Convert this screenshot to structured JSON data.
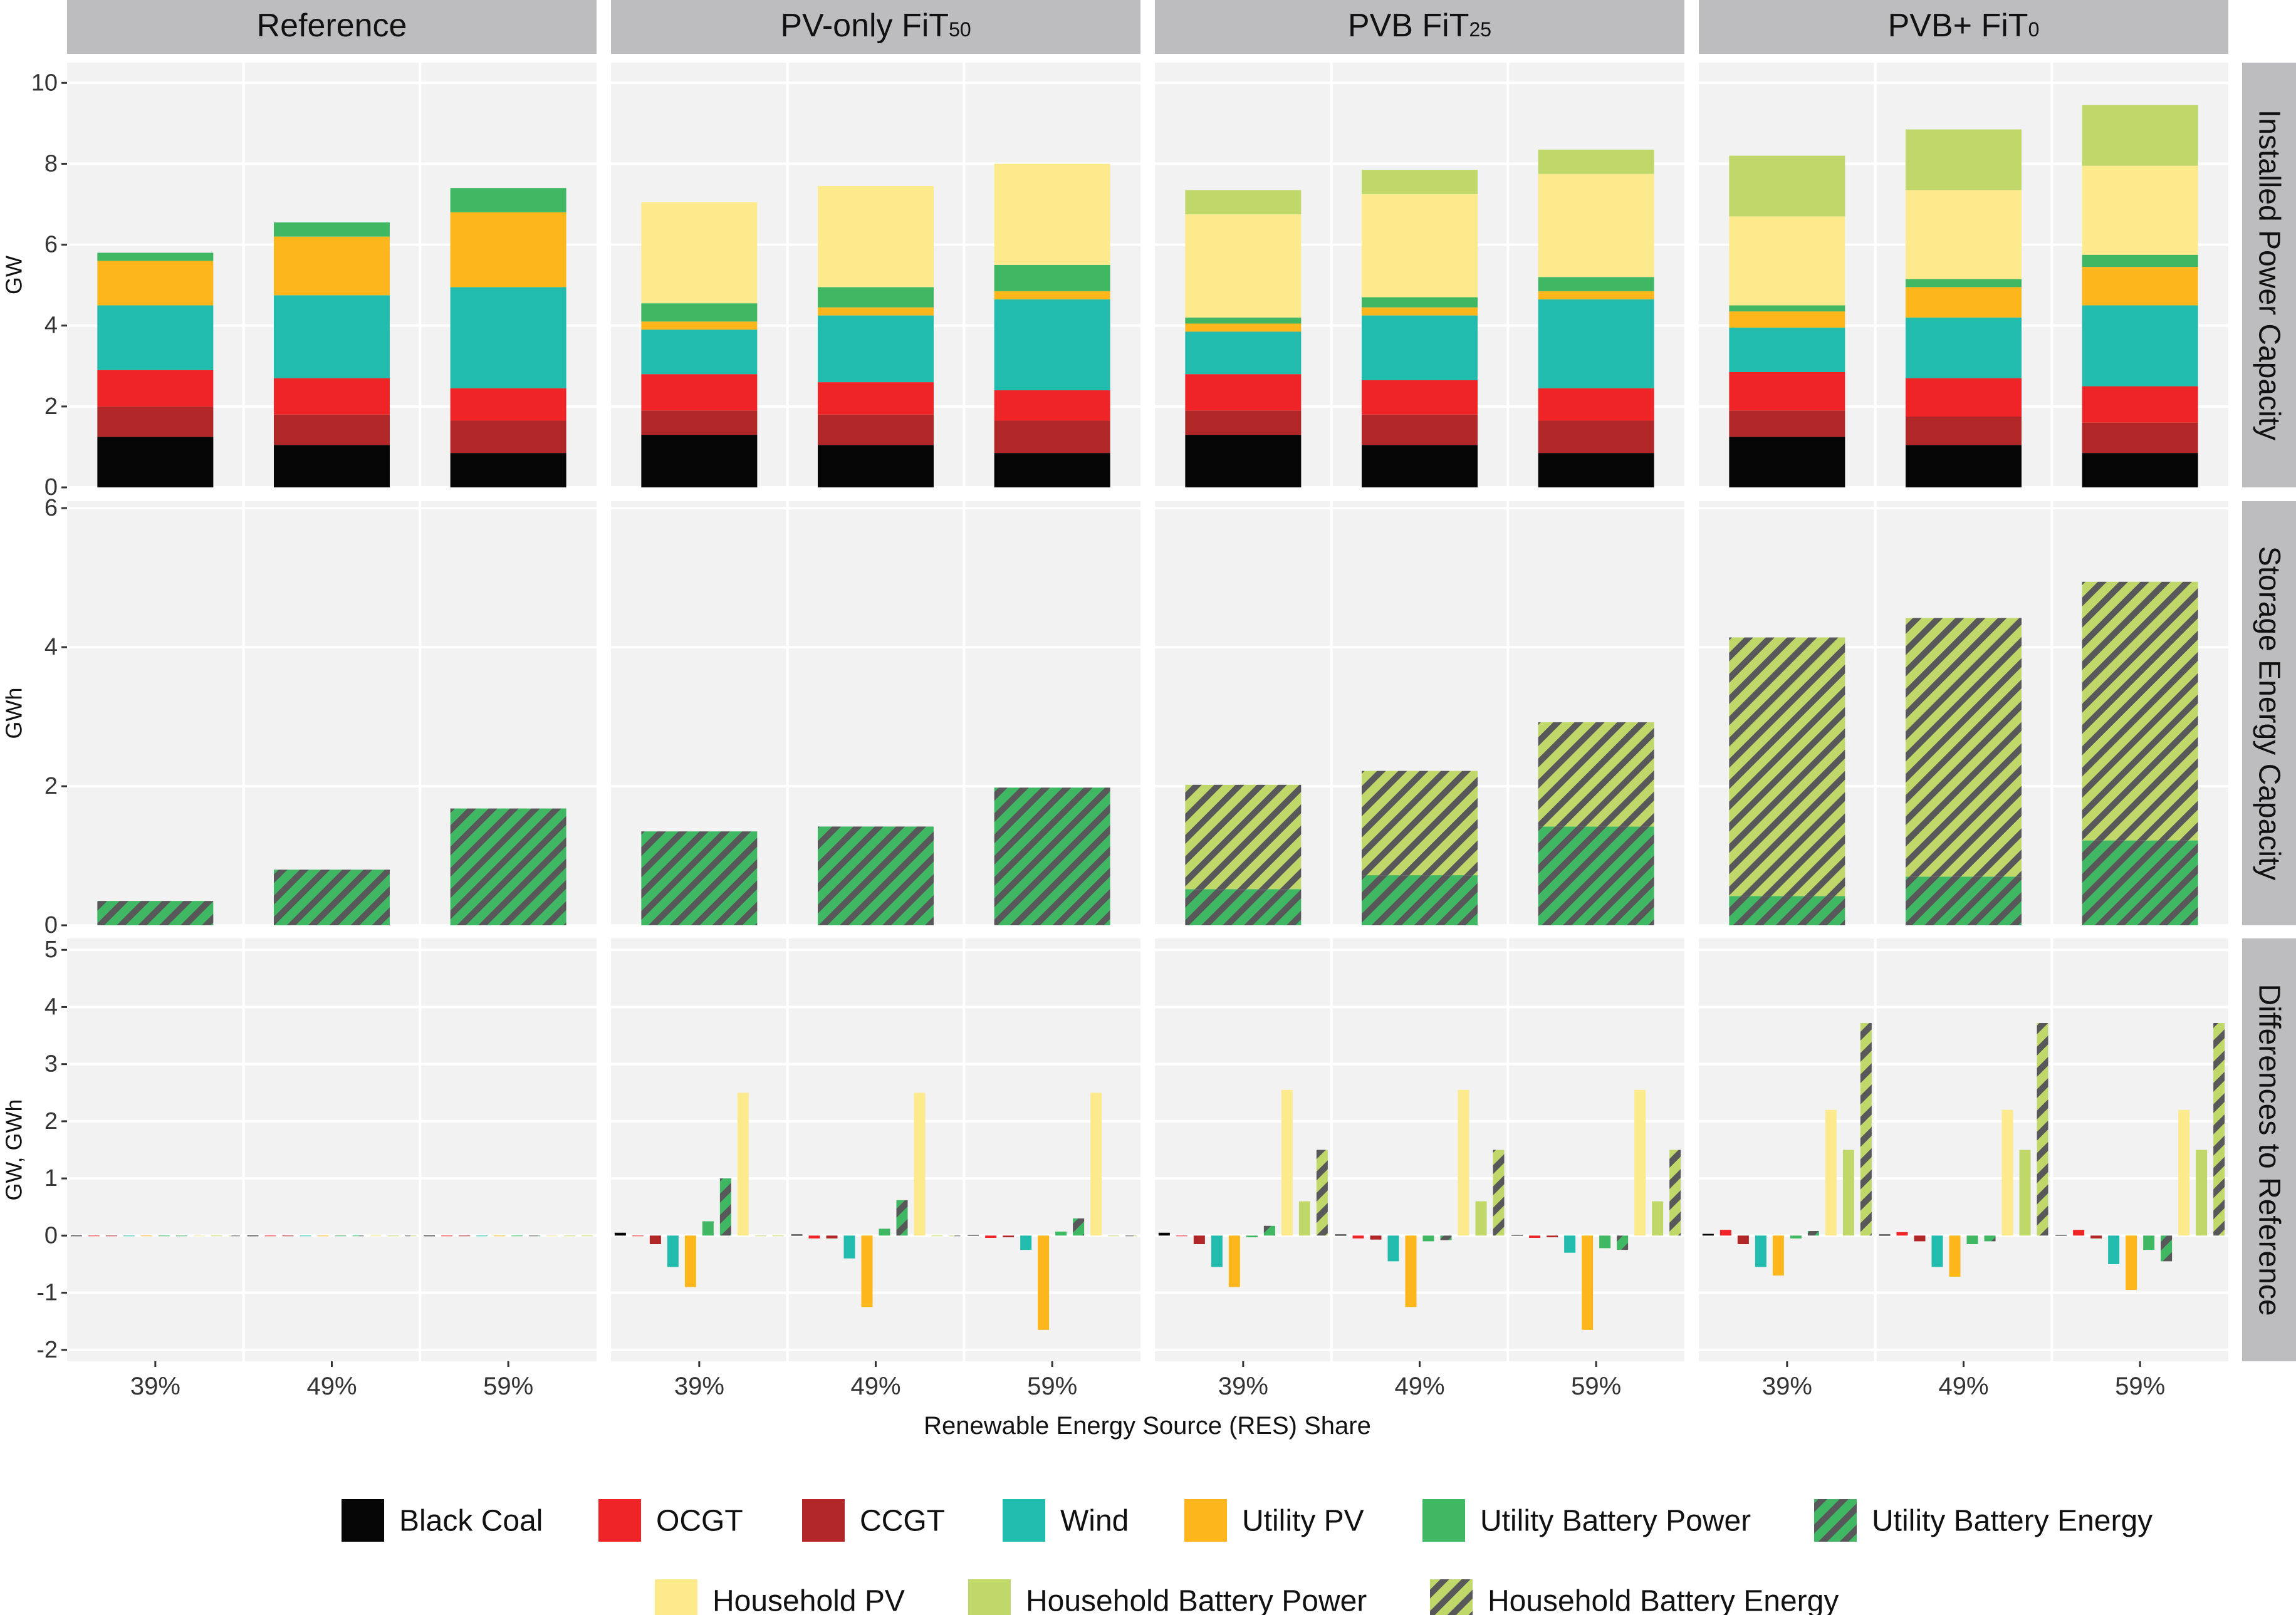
{
  "colors": {
    "Black Coal": "#050505",
    "OCGT": "#ee2427",
    "CCGT": "#b12626",
    "Wind": "#21bcad",
    "Utility PV": "#fdb71c",
    "Utility Battery Power": "#40b762",
    "Utility Battery Energy": "#40b762",
    "Household PV": "#fcea8d",
    "Household Battery Power": "#c0d86a",
    "Household Battery Energy": "#c0d86a",
    "stripe": "#58585a",
    "panel_bg": "#f2f2f2",
    "strip_bg": "#bdbdbf"
  },
  "chart_data": {
    "type": "bar",
    "xlabel": "Renewable Energy Source (RES) Share",
    "categories": [
      "39%",
      "49%",
      "59%"
    ],
    "facet_columns": [
      {
        "main": "Reference",
        "sub": ""
      },
      {
        "main": "PV-only FiT",
        "sub": "50"
      },
      {
        "main": "PVB FiT",
        "sub": "25"
      },
      {
        "main": "PVB+ FiT",
        "sub": "0"
      }
    ],
    "facet_rows": [
      {
        "label": "Installed Power Capacity",
        "ylabel": "GW",
        "ylim": [
          0,
          10.5
        ],
        "ticks": [
          "0",
          "2",
          "4",
          "6",
          "8",
          "10"
        ],
        "tick_values": [
          0,
          2,
          4,
          6,
          8,
          10
        ]
      },
      {
        "label": "Storage Energy Capacity",
        "ylabel": "GWh",
        "ylim": [
          0,
          6.1
        ],
        "ticks": [
          "0",
          "2",
          "4",
          "6"
        ],
        "tick_values": [
          0,
          2,
          4,
          6
        ]
      },
      {
        "label": "Differences to Reference",
        "ylabel": "GW, GWh",
        "ylim": [
          -2.2,
          5.2
        ],
        "ticks": [
          "-2",
          "-1",
          "0",
          "1",
          "2",
          "3",
          "4",
          "5"
        ],
        "tick_values": [
          -2,
          -1,
          0,
          1,
          2,
          3,
          4,
          5
        ]
      }
    ],
    "installed_power_capacity": [
      [
        {
          "Black Coal": 1.25,
          "CCGT": 0.75,
          "OCGT": 0.9,
          "Wind": 1.6,
          "Utility PV": 1.1,
          "Utility Battery Power": 0.2
        },
        {
          "Black Coal": 1.05,
          "CCGT": 0.75,
          "OCGT": 0.9,
          "Wind": 2.05,
          "Utility PV": 1.45,
          "Utility Battery Power": 0.35
        },
        {
          "Black Coal": 0.85,
          "CCGT": 0.8,
          "OCGT": 0.8,
          "Wind": 2.5,
          "Utility PV": 1.85,
          "Utility Battery Power": 0.6
        }
      ],
      [
        {
          "Black Coal": 1.3,
          "CCGT": 0.6,
          "OCGT": 0.9,
          "Wind": 1.1,
          "Utility PV": 0.2,
          "Utility Battery Power": 0.45,
          "Household PV": 2.5
        },
        {
          "Black Coal": 1.05,
          "CCGT": 0.75,
          "OCGT": 0.8,
          "Wind": 1.65,
          "Utility PV": 0.2,
          "Utility Battery Power": 0.5,
          "Household PV": 2.5
        },
        {
          "Black Coal": 0.85,
          "CCGT": 0.8,
          "OCGT": 0.75,
          "Wind": 2.25,
          "Utility PV": 0.2,
          "Utility Battery Power": 0.65,
          "Household PV": 2.5
        }
      ],
      [
        {
          "Black Coal": 1.3,
          "CCGT": 0.6,
          "OCGT": 0.9,
          "Wind": 1.05,
          "Utility PV": 0.2,
          "Utility Battery Power": 0.15,
          "Household PV": 2.55,
          "Household Battery Power": 0.6
        },
        {
          "Black Coal": 1.05,
          "CCGT": 0.75,
          "OCGT": 0.85,
          "Wind": 1.6,
          "Utility PV": 0.2,
          "Utility Battery Power": 0.25,
          "Household PV": 2.55,
          "Household Battery Power": 0.6
        },
        {
          "Black Coal": 0.85,
          "CCGT": 0.8,
          "OCGT": 0.8,
          "Wind": 2.2,
          "Utility PV": 0.2,
          "Utility Battery Power": 0.35,
          "Household PV": 2.55,
          "Household Battery Power": 0.6
        }
      ],
      [
        {
          "Black Coal": 1.25,
          "CCGT": 0.65,
          "OCGT": 0.95,
          "Wind": 1.1,
          "Utility PV": 0.4,
          "Utility Battery Power": 0.15,
          "Household PV": 2.2,
          "Household Battery Power": 1.5
        },
        {
          "Black Coal": 1.05,
          "CCGT": 0.7,
          "OCGT": 0.95,
          "Wind": 1.5,
          "Utility PV": 0.75,
          "Utility Battery Power": 0.2,
          "Household PV": 2.2,
          "Household Battery Power": 1.5
        },
        {
          "Black Coal": 0.85,
          "CCGT": 0.75,
          "OCGT": 0.9,
          "Wind": 2.0,
          "Utility PV": 0.95,
          "Utility Battery Power": 0.3,
          "Household PV": 2.2,
          "Household Battery Power": 1.5
        }
      ]
    ],
    "storage_energy_capacity": [
      [
        {
          "Utility Battery Energy": 0.35
        },
        {
          "Utility Battery Energy": 0.8
        },
        {
          "Utility Battery Energy": 1.68
        }
      ],
      [
        {
          "Utility Battery Energy": 1.35
        },
        {
          "Utility Battery Energy": 1.42
        },
        {
          "Utility Battery Energy": 1.98
        }
      ],
      [
        {
          "Utility Battery Energy": 0.52,
          "Household Battery Energy": 1.5
        },
        {
          "Utility Battery Energy": 0.72,
          "Household Battery Energy": 1.5
        },
        {
          "Utility Battery Energy": 1.42,
          "Household Battery Energy": 1.5
        }
      ],
      [
        {
          "Utility Battery Energy": 0.42,
          "Household Battery Energy": 3.72
        },
        {
          "Utility Battery Energy": 0.7,
          "Household Battery Energy": 3.72
        },
        {
          "Utility Battery Energy": 1.22,
          "Household Battery Energy": 3.72
        }
      ]
    ],
    "differences_to_reference": [
      [
        {
          "Black Coal": 0,
          "OCGT": 0,
          "CCGT": 0,
          "Wind": 0,
          "Utility PV": 0,
          "Utility Battery Power": 0,
          "Utility Battery Energy": 0,
          "Household PV": 0,
          "Household Battery Power": 0,
          "Household Battery Energy": 0
        },
        {
          "Black Coal": 0,
          "OCGT": 0,
          "CCGT": 0,
          "Wind": 0,
          "Utility PV": 0,
          "Utility Battery Power": 0,
          "Utility Battery Energy": 0,
          "Household PV": 0,
          "Household Battery Power": 0,
          "Household Battery Energy": 0
        },
        {
          "Black Coal": 0,
          "OCGT": 0,
          "CCGT": 0,
          "Wind": 0,
          "Utility PV": 0,
          "Utility Battery Power": 0,
          "Utility Battery Energy": 0,
          "Household PV": 0,
          "Household Battery Power": 0,
          "Household Battery Energy": 0
        }
      ],
      [
        {
          "Black Coal": 0.05,
          "OCGT": 0.0,
          "CCGT": -0.15,
          "Wind": -0.55,
          "Utility PV": -0.9,
          "Utility Battery Power": 0.25,
          "Utility Battery Energy": 1.0,
          "Household PV": 2.5,
          "Household Battery Power": 0,
          "Household Battery Energy": 0
        },
        {
          "Black Coal": 0.02,
          "OCGT": -0.05,
          "CCGT": -0.05,
          "Wind": -0.4,
          "Utility PV": -1.25,
          "Utility Battery Power": 0.12,
          "Utility Battery Energy": 0.62,
          "Household PV": 2.5,
          "Household Battery Power": 0,
          "Household Battery Energy": 0
        },
        {
          "Black Coal": 0.01,
          "OCGT": -0.04,
          "CCGT": -0.03,
          "Wind": -0.25,
          "Utility PV": -1.65,
          "Utility Battery Power": 0.07,
          "Utility Battery Energy": 0.3,
          "Household PV": 2.5,
          "Household Battery Power": 0,
          "Household Battery Energy": 0
        }
      ],
      [
        {
          "Black Coal": 0.05,
          "OCGT": 0.0,
          "CCGT": -0.15,
          "Wind": -0.55,
          "Utility PV": -0.9,
          "Utility Battery Power": -0.03,
          "Utility Battery Energy": 0.17,
          "Household PV": 2.55,
          "Household Battery Power": 0.6,
          "Household Battery Energy": 1.5
        },
        {
          "Black Coal": 0.02,
          "OCGT": -0.05,
          "CCGT": -0.07,
          "Wind": -0.45,
          "Utility PV": -1.25,
          "Utility Battery Power": -0.1,
          "Utility Battery Energy": -0.08,
          "Household PV": 2.55,
          "Household Battery Power": 0.6,
          "Household Battery Energy": 1.5
        },
        {
          "Black Coal": 0.01,
          "OCGT": -0.04,
          "CCGT": -0.03,
          "Wind": -0.3,
          "Utility PV": -1.65,
          "Utility Battery Power": -0.22,
          "Utility Battery Energy": -0.25,
          "Household PV": 2.55,
          "Household Battery Power": 0.6,
          "Household Battery Energy": 1.5
        }
      ],
      [
        {
          "Black Coal": 0.03,
          "OCGT": 0.1,
          "CCGT": -0.15,
          "Wind": -0.55,
          "Utility PV": -0.7,
          "Utility Battery Power": -0.05,
          "Utility Battery Energy": 0.08,
          "Household PV": 2.2,
          "Household Battery Power": 1.5,
          "Household Battery Energy": 3.72
        },
        {
          "Black Coal": 0.02,
          "OCGT": 0.06,
          "CCGT": -0.1,
          "Wind": -0.55,
          "Utility PV": -0.72,
          "Utility Battery Power": -0.15,
          "Utility Battery Energy": -0.1,
          "Household PV": 2.2,
          "Household Battery Power": 1.5,
          "Household Battery Energy": 3.72
        },
        {
          "Black Coal": 0.01,
          "OCGT": 0.1,
          "CCGT": -0.05,
          "Wind": -0.5,
          "Utility PV": -0.95,
          "Utility Battery Power": -0.25,
          "Utility Battery Energy": -0.45,
          "Household PV": 2.2,
          "Household Battery Power": 1.5,
          "Household Battery Energy": 3.72
        }
      ]
    ],
    "legend": {
      "position": "bottom",
      "row1": [
        "Black Coal",
        "OCGT",
        "CCGT",
        "Wind",
        "Utility PV",
        "Utility Battery Power",
        "Utility Battery Energy"
      ],
      "row2": [
        "Household PV",
        "Household Battery Power",
        "Household Battery Energy"
      ]
    }
  }
}
